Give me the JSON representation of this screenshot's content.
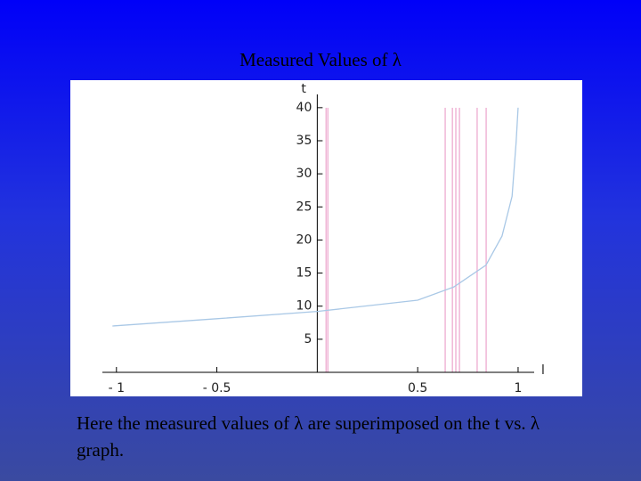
{
  "chart_data": {
    "type": "line",
    "title": "Measured Values of λ",
    "caption": "Here the measured values of λ are superimposed on the t vs. λ graph.",
    "x_label": "l",
    "y_label": "t",
    "x": [
      -1.02,
      -0.5,
      0,
      0.5,
      0.68,
      0.84,
      0.92,
      0.97,
      0.99,
      1.0
    ],
    "series": [
      {
        "name": "t",
        "color": "#a9c8e6",
        "values": [
          7.0,
          8.1,
          9.2,
          10.9,
          12.9,
          16.2,
          20.6,
          26.6,
          34.7,
          40
        ]
      }
    ],
    "measured_lambda": [
      0.044,
      0.053,
      0.637,
      0.673,
      0.69,
      0.708,
      0.796,
      0.841
    ],
    "measured_color": "#f0b6d6",
    "xlim": [
      -1.07,
      1.08
    ],
    "ylim": [
      0,
      42
    ],
    "xticks": [
      {
        "value": -1,
        "label": "- 1"
      },
      {
        "value": -0.5,
        "label": "- 0.5"
      },
      0.5,
      1
    ],
    "yticks": [
      5,
      10,
      15,
      20,
      25,
      30,
      35,
      40
    ]
  }
}
